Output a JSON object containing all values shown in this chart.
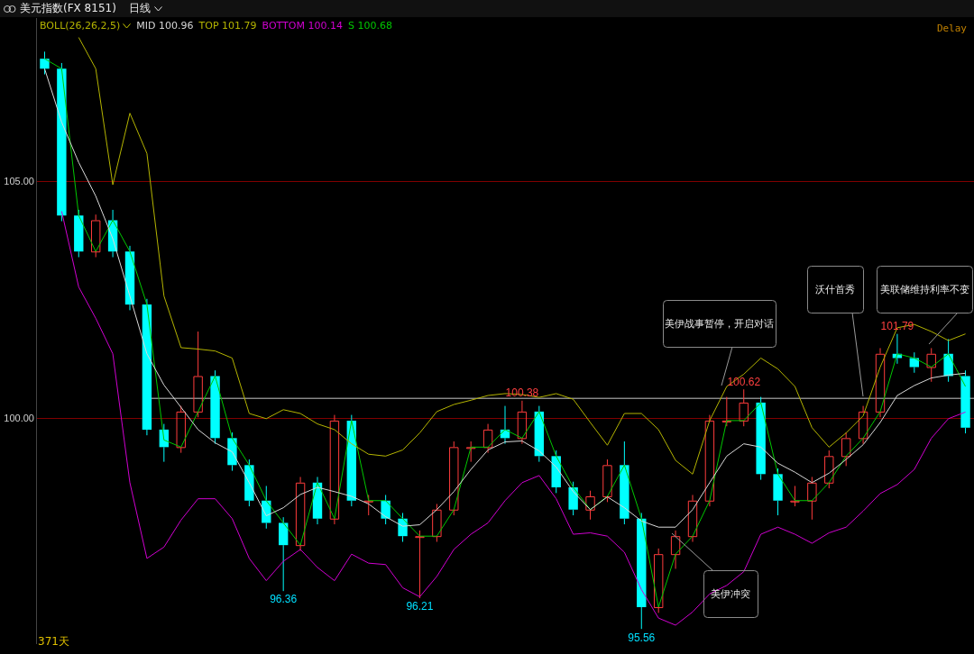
{
  "chart_data": {
    "type": "candlestick",
    "title": "美元指数(FX 8151)",
    "subtitle": "日线",
    "legend_title": "BOLL(26,26,2,5)",
    "grid": "y",
    "categories": [
      null,
      null,
      null,
      null,
      null,
      null,
      null,
      null,
      null,
      null,
      null,
      null,
      null,
      null,
      null,
      null,
      null,
      null,
      null,
      null,
      null,
      null,
      null,
      null,
      null,
      null,
      null,
      null,
      null,
      null,
      null,
      null,
      null,
      null,
      null,
      null,
      null,
      null,
      null,
      null,
      null,
      null,
      null,
      null,
      null,
      null,
      null,
      null,
      null,
      null,
      null,
      null,
      null,
      null,
      null
    ],
    "ylim": [
      95.26,
      108.46
    ],
    "yticks": [
      {
        "value": 100,
        "label": "100.00"
      },
      {
        "value": 105,
        "label": "105.00"
      }
    ],
    "ohlc": [
      [
        107.6,
        107.75,
        107.27,
        107.39
      ],
      [
        107.39,
        107.51,
        104.17,
        104.29
      ],
      [
        104.29,
        104.41,
        103.41,
        103.53
      ],
      [
        103.53,
        104.31,
        103.41,
        104.19
      ],
      [
        104.19,
        104.41,
        103.41,
        103.53
      ],
      [
        103.53,
        103.65,
        102.29,
        102.41
      ],
      [
        102.41,
        102.53,
        99.65,
        99.77
      ],
      [
        99.77,
        99.89,
        99.09,
        99.4
      ],
      [
        99.4,
        100.27,
        99.28,
        100.15
      ],
      [
        100.15,
        101.84,
        100.03,
        100.9
      ],
      [
        100.9,
        101.02,
        99.47,
        99.59
      ],
      [
        99.59,
        99.71,
        98.9,
        99.02
      ],
      [
        99.02,
        99.14,
        98.15,
        98.27
      ],
      [
        98.27,
        98.58,
        97.68,
        97.8
      ],
      [
        97.8,
        97.92,
        96.36,
        97.33
      ],
      [
        97.33,
        98.77,
        97.21,
        98.65
      ],
      [
        98.65,
        98.77,
        97.77,
        97.89
      ],
      [
        97.89,
        100.08,
        97.77,
        99.96
      ],
      [
        99.96,
        100.08,
        98.15,
        98.27
      ],
      [
        98.27,
        98.39,
        97.96,
        98.27
      ],
      [
        98.27,
        98.39,
        97.77,
        97.89
      ],
      [
        97.89,
        98.01,
        97.4,
        97.52
      ],
      [
        97.52,
        97.64,
        96.21,
        97.52
      ],
      [
        97.52,
        98.2,
        97.4,
        98.08
      ],
      [
        98.08,
        99.52,
        97.96,
        99.4
      ],
      [
        99.4,
        99.52,
        99.09,
        99.4
      ],
      [
        99.4,
        99.89,
        99.28,
        99.77
      ],
      [
        99.77,
        100.27,
        99.47,
        99.59
      ],
      [
        99.59,
        100.38,
        99.47,
        100.15
      ],
      [
        100.15,
        100.27,
        99.09,
        99.21
      ],
      [
        99.21,
        99.33,
        98.43,
        98.55
      ],
      [
        98.55,
        98.67,
        97.96,
        98.08
      ],
      [
        98.08,
        98.48,
        97.87,
        98.36
      ],
      [
        98.36,
        99.14,
        98.24,
        99.02
      ],
      [
        99.02,
        99.52,
        97.77,
        97.89
      ],
      [
        97.89,
        98.01,
        95.56,
        96.02
      ],
      [
        96.02,
        97.26,
        95.9,
        97.14
      ],
      [
        97.14,
        97.64,
        96.83,
        97.52
      ],
      [
        97.52,
        98.39,
        97.4,
        98.27
      ],
      [
        98.27,
        100.08,
        98.15,
        99.96
      ],
      [
        99.96,
        100.46,
        99.84,
        99.96
      ],
      [
        99.96,
        100.62,
        99.84,
        100.34
      ],
      [
        100.34,
        100.46,
        98.71,
        98.83
      ],
      [
        98.83,
        98.95,
        97.96,
        98.27
      ],
      [
        98.27,
        98.58,
        98.15,
        98.27
      ],
      [
        98.27,
        98.77,
        97.87,
        98.65
      ],
      [
        98.65,
        99.33,
        98.53,
        99.21
      ],
      [
        99.21,
        99.71,
        99.0,
        99.59
      ],
      [
        99.59,
        100.27,
        99.47,
        100.15
      ],
      [
        100.15,
        101.49,
        100.03,
        101.37
      ],
      [
        101.37,
        101.79,
        101.16,
        101.28
      ],
      [
        101.28,
        101.4,
        100.97,
        101.09
      ],
      [
        101.09,
        101.49,
        100.78,
        101.37
      ],
      [
        101.37,
        101.68,
        100.78,
        100.9
      ],
      [
        100.9,
        101.02,
        99.69,
        99.81
      ]
    ],
    "colors": [
      "#00ffff",
      "#00ffff",
      "#00ffff",
      "#ff3c3c",
      "#00ffff",
      "#00ffff",
      "#00ffff",
      "#00ffff",
      "#ff3c3c",
      "#ff3c3c",
      "#00ffff",
      "#00ffff",
      "#00ffff",
      "#00ffff",
      "#00ffff",
      "#ff3c3c",
      "#00ffff",
      "#ff3c3c",
      "#00ffff",
      "#ff3c3c",
      "#00ffff",
      "#00ffff",
      "#ff3c3c",
      "#ff3c3c",
      "#ff3c3c",
      "#ff3c3c",
      "#ff3c3c",
      "#00ffff",
      "#ff3c3c",
      "#00ffff",
      "#00ffff",
      "#00ffff",
      "#ff3c3c",
      "#ff3c3c",
      "#00ffff",
      "#00ffff",
      "#ff3c3c",
      "#ff3c3c",
      "#ff3c3c",
      "#ff3c3c",
      "#ff3c3c",
      "#ff3c3c",
      "#00ffff",
      "#00ffff",
      "#ff3c3c",
      "#ff3c3c",
      "#ff3c3c",
      "#ff3c3c",
      "#ff3c3c",
      "#ff3c3c",
      "#00ffff",
      "#00ffff",
      "#ff3c3c",
      "#00ffff",
      "#00ffff"
    ],
    "series": [
      {
        "name": "MID 100.96",
        "type": "line",
        "color": "#d8d8d8",
        "values": [
          107.39,
          106.26,
          105.41,
          104.7,
          103.8,
          102.59,
          101.37,
          100.71,
          100.24,
          99.77,
          99.49,
          99.3,
          98.65,
          97.95,
          98.12,
          98.4,
          98.55,
          98.46,
          98.36,
          98.2,
          97.93,
          97.73,
          97.76,
          98.08,
          98.46,
          98.93,
          99.34,
          99.51,
          99.53,
          99.32,
          98.98,
          98.46,
          98.08,
          98.35,
          98.12,
          97.84,
          97.71,
          97.71,
          98.08,
          98.65,
          99.21,
          99.47,
          99.4,
          99.06,
          98.87,
          98.65,
          98.85,
          99.14,
          99.45,
          99.92,
          100.49,
          100.7,
          100.86,
          100.92,
          100.96
        ]
      },
      {
        "name": "TOP 101.79",
        "type": "line",
        "color": "#b4b400",
        "values": [
          null,
          null,
          108.05,
          107.39,
          104.94,
          106.45,
          105.6,
          102.59,
          101.5,
          101.47,
          101.43,
          101.28,
          100.11,
          100.0,
          100.19,
          100.11,
          99.89,
          99.77,
          99.47,
          99.25,
          99.21,
          99.34,
          99.7,
          100.15,
          100.3,
          100.39,
          100.49,
          100.53,
          100.51,
          100.45,
          100.53,
          100.41,
          99.92,
          99.44,
          100.11,
          100.11,
          99.77,
          99.12,
          98.83,
          99.96,
          100.68,
          100.94,
          101.28,
          101.05,
          100.68,
          99.81,
          99.4,
          99.7,
          100.06,
          101.09,
          101.92,
          101.99,
          101.84,
          101.65,
          101.79
        ]
      },
      {
        "name": "BOTTOM 100.14",
        "type": "line",
        "color": "#d000d0",
        "values": [
          null,
          104.38,
          102.78,
          102.12,
          101.37,
          98.65,
          97.05,
          97.29,
          97.86,
          98.31,
          98.31,
          97.89,
          97.05,
          96.58,
          96.99,
          97.24,
          96.86,
          96.58,
          97.14,
          96.95,
          96.92,
          96.43,
          96.24,
          96.67,
          97.24,
          97.56,
          97.8,
          98.27,
          98.65,
          98.8,
          98.31,
          97.56,
          97.59,
          97.52,
          97.18,
          96.39,
          95.79,
          95.64,
          95.92,
          96.3,
          96.48,
          96.77,
          97.56,
          97.71,
          97.56,
          97.37,
          97.59,
          97.71,
          98.05,
          98.42,
          98.61,
          98.93,
          99.59,
          100.0,
          100.14
        ]
      },
      {
        "name": "S 100.68",
        "type": "line",
        "color": "#00c800",
        "values": [
          107.6,
          107.39,
          104.29,
          103.53,
          104.19,
          103.53,
          102.41,
          99.55,
          99.4,
          100.15,
          100.9,
          99.59,
          99.02,
          98.27,
          97.8,
          97.33,
          98.65,
          97.89,
          99.96,
          98.27,
          98.27,
          97.89,
          97.52,
          97.52,
          98.08,
          99.4,
          99.4,
          99.77,
          99.59,
          100.15,
          99.21,
          98.55,
          98.08,
          98.36,
          99.02,
          97.89,
          96.02,
          97.14,
          97.52,
          98.27,
          99.96,
          99.96,
          100.34,
          98.83,
          98.27,
          98.27,
          98.65,
          99.21,
          99.59,
          100.15,
          101.37,
          101.28,
          101.09,
          101.37,
          100.68
        ]
      }
    ],
    "ref_lines": [
      {
        "axis": "y",
        "value": 100.43,
        "color": "#c8c8c8"
      }
    ],
    "annotations": [
      "美伊战事暂停，开启对话",
      "沃什首秀",
      "美联储维持利率不变",
      "美伊冲突",
      "371天",
      "Delay",
      {
        "text": "100.38",
        "y": 100.38
      },
      {
        "text": "100.62",
        "y": 100.62
      },
      {
        "text": "101.79",
        "y": 101.79
      },
      {
        "text": "96.36",
        "y": 96.36
      },
      {
        "text": "96.21",
        "y": 96.21
      },
      {
        "text": "95.56",
        "y": 95.56
      }
    ]
  }
}
